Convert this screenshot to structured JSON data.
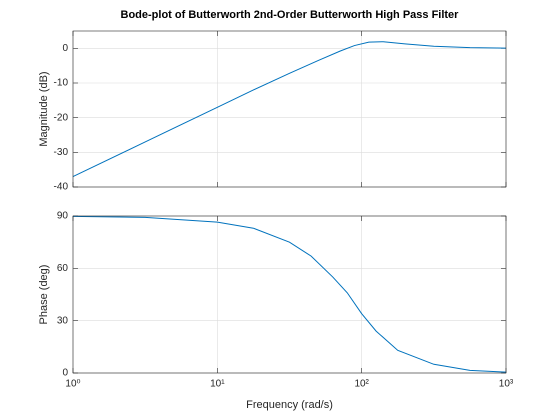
{
  "chart_data": [
    {
      "type": "line",
      "title": "Bode-plot of Butterworth 2nd-Order Butterworth High Pass Filter",
      "y_label": "Magnitude (dB)",
      "xscale": "log",
      "grid": true,
      "color": "#0072bd",
      "x": [
        1,
        3.162,
        10,
        17.78,
        31.62,
        50.12,
        70.79,
        89.13,
        112.2,
        141.3,
        199.5,
        316.2,
        562.3,
        1000
      ],
      "values": [
        -37,
        -27,
        -17,
        -12,
        -7.2,
        -3.5,
        -0.8,
        0.8,
        1.8,
        1.9,
        1.3,
        0.6,
        0.2,
        0.05
      ],
      "xlim": [
        1,
        1000
      ],
      "xticks": [
        1,
        10,
        100,
        1000
      ],
      "ylim": [
        -40,
        5
      ],
      "yticks": [
        -40,
        -30,
        -20,
        -10,
        0
      ]
    },
    {
      "type": "line",
      "y_label": "Phase (deg)",
      "x_label": "Frequency  (rad/s)",
      "xscale": "log",
      "grid": true,
      "color": "#0072bd",
      "x": [
        1,
        3.162,
        10,
        17.78,
        31.62,
        44.67,
        63.1,
        79.43,
        100,
        125.9,
        177.8,
        316.2,
        562.3,
        1000
      ],
      "values": [
        89.8,
        89.2,
        86.5,
        83,
        75,
        67,
        55,
        46,
        34,
        24,
        13,
        5,
        1.5,
        0.5
      ],
      "xlim": [
        1,
        1000
      ],
      "xticks": [
        {
          "value": 1,
          "label": "10⁰"
        },
        {
          "value": 10,
          "label": "10¹"
        },
        {
          "value": 100,
          "label": "10²"
        },
        {
          "value": 1000,
          "label": "10³"
        }
      ],
      "ylim": [
        0,
        90
      ],
      "yticks": [
        0,
        30,
        60,
        90
      ]
    }
  ]
}
